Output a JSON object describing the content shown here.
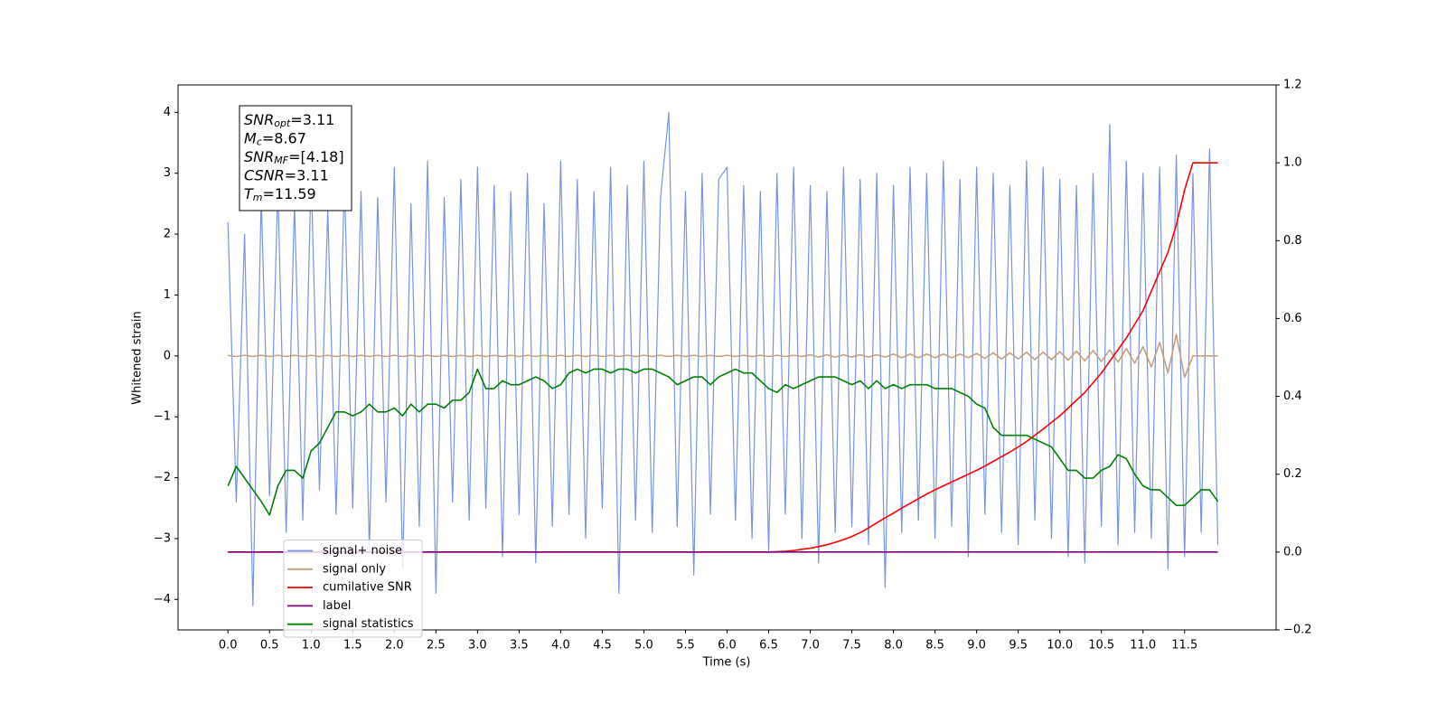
{
  "chart_data": {
    "type": "line",
    "xlabel": "Time (s)",
    "ylabel": "Whitened strain",
    "xlim": [
      -0.6,
      12.6
    ],
    "ylim": [
      -4.5,
      4.45
    ],
    "y2lim": [
      -0.2,
      1.2
    ],
    "xticks": [
      {
        "value": 0,
        "label": "0.0"
      },
      0.5,
      {
        "value": 1,
        "label": "1.0"
      },
      1.5,
      {
        "value": 2,
        "label": "2.0"
      },
      2.5,
      {
        "value": 3,
        "label": "3.0"
      },
      3.5,
      {
        "value": 4,
        "label": "4.0"
      },
      4.5,
      {
        "value": 5,
        "label": "5.0"
      },
      5.5,
      {
        "value": 6,
        "label": "6.0"
      },
      6.5,
      {
        "value": 7,
        "label": "7.0"
      },
      7.5,
      {
        "value": 8,
        "label": "8.0"
      },
      8.5,
      {
        "value": 9,
        "label": "9.0"
      },
      9.5,
      {
        "value": 10,
        "label": "10.0"
      },
      10.5,
      {
        "value": 11,
        "label": "11.0"
      },
      11.5
    ],
    "yticks": [
      {
        "value": -4,
        "label": "−4"
      },
      {
        "value": -3,
        "label": "−3"
      },
      {
        "value": -2,
        "label": "−2"
      },
      {
        "value": -1,
        "label": "−1"
      },
      0,
      1,
      2,
      3,
      4
    ],
    "y2ticks": [
      {
        "value": -0.2,
        "label": "−0.2"
      },
      {
        "value": 0,
        "label": "0.0"
      },
      0.2,
      0.4,
      0.6,
      0.8,
      {
        "value": 1,
        "label": "1.0"
      },
      1.2
    ],
    "legend": "lower left",
    "annotation": [
      {
        "symbol": "SNR",
        "subscript": "opt",
        "text": "=3.11"
      },
      {
        "symbol": "M",
        "subscript": "c",
        "text": "=8.67"
      },
      {
        "symbol": "SNR",
        "subscript": "MF",
        "text": "=[4.18]"
      },
      {
        "symbol": "CSNR",
        "text": "=3.11"
      },
      {
        "symbol": "T",
        "subscript": "m",
        "text": "=11.59"
      }
    ],
    "x": [
      0,
      0.1,
      0.2,
      0.3,
      0.4,
      0.5,
      0.6,
      0.7,
      0.8,
      0.9,
      1,
      1.1,
      1.2,
      1.3,
      1.4,
      1.5,
      1.6,
      1.7,
      1.8,
      1.9,
      2,
      2.1,
      2.2,
      2.3,
      2.4,
      2.5,
      2.6,
      2.7,
      2.8,
      2.9,
      3,
      3.1,
      3.2,
      3.3,
      3.4,
      3.5,
      3.6,
      3.7,
      3.8,
      3.9,
      4,
      4.1,
      4.2,
      4.3,
      4.4,
      4.5,
      4.6,
      4.7,
      4.8,
      4.9,
      5,
      5.1,
      5.2,
      5.3,
      5.4,
      5.5,
      5.6,
      5.7,
      5.8,
      5.9,
      6,
      6.1,
      6.2,
      6.3,
      6.4,
      6.5,
      6.6,
      6.7,
      6.8,
      6.9,
      7,
      7.1,
      7.2,
      7.3,
      7.4,
      7.5,
      7.6,
      7.7,
      7.8,
      7.9,
      8,
      8.1,
      8.2,
      8.3,
      8.4,
      8.5,
      8.6,
      8.7,
      8.8,
      8.9,
      9,
      9.1,
      9.2,
      9.3,
      9.4,
      9.5,
      9.6,
      9.7,
      9.8,
      9.9,
      10,
      10.1,
      10.2,
      10.3,
      10.4,
      10.5,
      10.6,
      10.7,
      10.8,
      10.9,
      11,
      11.1,
      11.2,
      11.3,
      11.4,
      11.5,
      11.6,
      11.7,
      11.8,
      11.9
    ],
    "series": [
      {
        "name": "signal+ noise",
        "color": "#7893e6",
        "axis": "y",
        "values": [
          2.2,
          -2.4,
          2.0,
          -4.1,
          2.6,
          -2.3,
          2.8,
          -2.9,
          2.5,
          -2.7,
          3.0,
          -2.2,
          2.4,
          -2.6,
          2.9,
          -2.5,
          2.7,
          -3.2,
          2.6,
          -2.4,
          3.1,
          -3.5,
          2.5,
          -2.8,
          3.2,
          -3.9,
          2.6,
          -2.4,
          2.9,
          -2.7,
          3.1,
          -2.5,
          2.8,
          -3.3,
          2.7,
          -2.6,
          3.0,
          -3.4,
          2.5,
          -2.8,
          3.2,
          -2.6,
          2.9,
          -3.0,
          2.7,
          -2.5,
          3.1,
          -3.9,
          2.8,
          -2.7,
          3.2,
          -2.9,
          2.6,
          4.0,
          -2.8,
          2.7,
          -3.6,
          3.0,
          -2.6,
          2.9,
          3.1,
          -2.7,
          2.8,
          -3.0,
          2.7,
          -3.2,
          3.0,
          -2.6,
          3.1,
          -3.0,
          2.8,
          -3.4,
          2.7,
          -2.9,
          3.1,
          -2.8,
          2.9,
          -3.1,
          3.0,
          -3.8,
          2.8,
          -2.9,
          3.1,
          -2.7,
          3.0,
          -3.0,
          3.2,
          -2.8,
          2.9,
          -3.3,
          3.1,
          -2.6,
          3.0,
          -2.9,
          2.8,
          -3.1,
          3.2,
          -2.7,
          3.1,
          -3.0,
          2.9,
          -3.3,
          2.8,
          -3.4,
          3.0,
          -2.8,
          3.8,
          -3.1,
          3.2,
          -2.9,
          3.0,
          -3.0,
          3.1,
          -3.5,
          3.3,
          -3.3,
          3.0,
          -2.9,
          3.4,
          -3.1
        ]
      },
      {
        "name": "signal only",
        "color": "#c4a07c",
        "axis": "y",
        "values": [
          0.01,
          -0.01,
          0.01,
          -0.01,
          0.01,
          -0.01,
          0.01,
          -0.01,
          0.01,
          -0.01,
          0.01,
          -0.01,
          0.01,
          -0.01,
          0.01,
          -0.01,
          0.01,
          -0.01,
          0.01,
          -0.01,
          0.01,
          -0.01,
          0.01,
          -0.01,
          0.01,
          -0.01,
          0.01,
          -0.01,
          0.01,
          -0.01,
          0.01,
          -0.01,
          0.01,
          -0.01,
          0.01,
          -0.01,
          0.01,
          -0.01,
          0.01,
          -0.01,
          0.01,
          -0.01,
          0.01,
          -0.01,
          0.01,
          -0.01,
          0.01,
          -0.01,
          0.01,
          -0.01,
          0.01,
          -0.01,
          0.01,
          -0.01,
          0.01,
          -0.01,
          0.01,
          -0.01,
          0.01,
          -0.01,
          0.01,
          -0.01,
          0.01,
          -0.01,
          0.01,
          -0.01,
          0.01,
          -0.01,
          0.01,
          -0.01,
          0.02,
          -0.02,
          0.02,
          -0.02,
          0.02,
          -0.02,
          0.02,
          -0.02,
          0.02,
          -0.02,
          0.03,
          -0.03,
          0.03,
          -0.03,
          0.03,
          -0.03,
          0.03,
          -0.03,
          0.03,
          -0.03,
          0.04,
          -0.04,
          0.05,
          -0.05,
          0.05,
          -0.05,
          0.06,
          -0.06,
          0.06,
          -0.06,
          0.07,
          -0.07,
          0.08,
          -0.08,
          0.09,
          -0.09,
          0.1,
          -0.1,
          0.12,
          -0.12,
          0.15,
          -0.18,
          0.22,
          -0.28,
          0.35,
          -0.35,
          0,
          0,
          0,
          0
        ]
      },
      {
        "name": "cumilative SNR",
        "color": "#ff0000",
        "axis": "y2",
        "values": [
          0,
          0,
          0,
          0,
          0,
          0,
          0,
          0,
          0,
          0,
          0,
          0,
          0,
          0,
          0,
          0,
          0,
          0,
          0,
          0,
          0,
          0,
          0,
          0,
          0,
          0,
          0,
          0,
          0,
          0,
          0,
          0,
          0,
          0,
          0,
          0,
          0,
          0,
          0,
          0,
          0,
          0,
          0,
          0,
          0,
          0,
          0,
          0,
          0,
          0,
          0,
          0,
          0,
          0,
          0,
          0,
          0,
          0,
          0,
          0,
          0,
          0,
          0,
          0,
          0,
          0,
          0.001,
          0.002,
          0.004,
          0.007,
          0.01,
          0.014,
          0.019,
          0.025,
          0.032,
          0.04,
          0.05,
          0.062,
          0.075,
          0.088,
          0.1,
          0.113,
          0.125,
          0.137,
          0.149,
          0.16,
          0.17,
          0.18,
          0.19,
          0.2,
          0.21,
          0.221,
          0.233,
          0.245,
          0.257,
          0.27,
          0.284,
          0.3,
          0.316,
          0.333,
          0.35,
          0.37,
          0.39,
          0.41,
          0.435,
          0.46,
          0.49,
          0.52,
          0.55,
          0.585,
          0.62,
          0.67,
          0.72,
          0.77,
          0.84,
          0.93,
          1.0,
          1.0,
          1.0,
          1.0
        ]
      },
      {
        "name": "label",
        "color": "#800080",
        "axis": "y2",
        "values": [
          0,
          0,
          0,
          0,
          0,
          0,
          0,
          0,
          0,
          0,
          0,
          0,
          0,
          0,
          0,
          0,
          0,
          0,
          0,
          0,
          0,
          0,
          0,
          0,
          0,
          0,
          0,
          0,
          0,
          0,
          0,
          0,
          0,
          0,
          0,
          0,
          0,
          0,
          0,
          0,
          0,
          0,
          0,
          0,
          0,
          0,
          0,
          0,
          0,
          0,
          0,
          0,
          0,
          0,
          0,
          0,
          0,
          0,
          0,
          0,
          0,
          0,
          0,
          0,
          0,
          0,
          0,
          0,
          0,
          0,
          0,
          0,
          0,
          0,
          0,
          0,
          0,
          0,
          0,
          0,
          0,
          0,
          0,
          0,
          0,
          0,
          0,
          0,
          0,
          0,
          0,
          0,
          0,
          0,
          0,
          0,
          0,
          0,
          0,
          0,
          0,
          0,
          0,
          0,
          0,
          0,
          0,
          0,
          0,
          0,
          0,
          0,
          0,
          0,
          0,
          0,
          0,
          0,
          0,
          0
        ]
      },
      {
        "name": "signal statistics",
        "color": "#008000",
        "axis": "y2",
        "values": [
          0.17,
          0.22,
          0.19,
          0.16,
          0.13,
          0.095,
          0.17,
          0.21,
          0.21,
          0.19,
          0.26,
          0.28,
          0.32,
          0.36,
          0.36,
          0.35,
          0.36,
          0.38,
          0.36,
          0.36,
          0.37,
          0.35,
          0.38,
          0.36,
          0.38,
          0.38,
          0.37,
          0.39,
          0.39,
          0.41,
          0.47,
          0.42,
          0.42,
          0.44,
          0.43,
          0.43,
          0.44,
          0.45,
          0.44,
          0.42,
          0.43,
          0.46,
          0.47,
          0.46,
          0.47,
          0.47,
          0.46,
          0.47,
          0.47,
          0.46,
          0.47,
          0.47,
          0.46,
          0.45,
          0.43,
          0.44,
          0.45,
          0.45,
          0.43,
          0.45,
          0.46,
          0.47,
          0.46,
          0.46,
          0.44,
          0.42,
          0.41,
          0.43,
          0.42,
          0.43,
          0.44,
          0.45,
          0.45,
          0.45,
          0.44,
          0.43,
          0.44,
          0.42,
          0.44,
          0.42,
          0.43,
          0.42,
          0.43,
          0.43,
          0.43,
          0.42,
          0.42,
          0.42,
          0.41,
          0.4,
          0.38,
          0.37,
          0.32,
          0.3,
          0.3,
          0.3,
          0.3,
          0.29,
          0.28,
          0.27,
          0.24,
          0.21,
          0.21,
          0.19,
          0.19,
          0.21,
          0.22,
          0.25,
          0.24,
          0.2,
          0.17,
          0.16,
          0.16,
          0.14,
          0.12,
          0.12,
          0.14,
          0.16,
          0.16,
          0.13
        ]
      }
    ]
  }
}
